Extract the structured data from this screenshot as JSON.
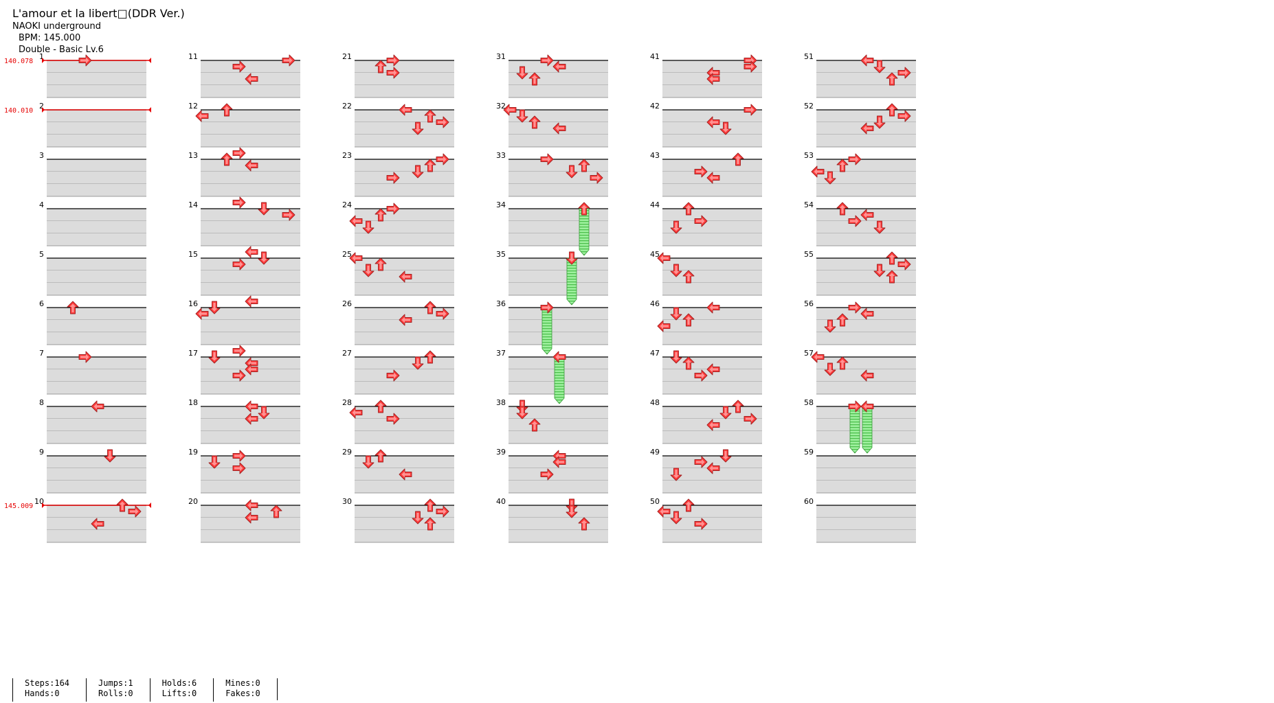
{
  "song": {
    "title": "L'amour et la libert□(DDR Ver.)",
    "artist": "NAOKI underground",
    "bpm_label": "BPM: 145.000",
    "difficulty_label": "Double - Basic  Lv.6"
  },
  "bpm_markers": [
    {
      "measure": 1,
      "label": "140.078"
    },
    {
      "measure": 2,
      "label": "140.010"
    },
    {
      "measure": 10,
      "label": "145.009"
    }
  ],
  "colors": {
    "arrow": "#ff3b3b",
    "hold": "#7ee27e",
    "bpm_line": "#e60000",
    "band": "#dcdcdc"
  },
  "stats": {
    "steps": "Steps:164",
    "hands": "Hands:0",
    "jumps": "Jumps:1",
    "rolls": "Rolls:0",
    "holds": "Holds:6",
    "lifts": "Lifts:0",
    "mines": "Mines:0",
    "fakes": "Fakes:0"
  },
  "measures_per_column": 10,
  "total_measures": 60,
  "lanes": [
    "left",
    "down",
    "up",
    "right",
    "left",
    "down",
    "up",
    "right"
  ],
  "notes": [
    {
      "m": 1,
      "b": 0,
      "l": 3
    },
    {
      "m": 6,
      "b": 0,
      "l": 2
    },
    {
      "m": 7,
      "b": 0,
      "l": 3
    },
    {
      "m": 8,
      "b": 0,
      "l": 4
    },
    {
      "m": 9,
      "b": 0,
      "l": 5
    },
    {
      "m": 10,
      "b": 0,
      "l": 6
    },
    {
      "m": 10,
      "b": 0.5,
      "l": 7
    },
    {
      "m": 10,
      "b": 1.5,
      "l": 4
    },
    {
      "m": 11,
      "b": 0,
      "l": 7
    },
    {
      "m": 11,
      "b": 0.5,
      "l": 3
    },
    {
      "m": 11,
      "b": 1.5,
      "l": 4
    },
    {
      "m": 12,
      "b": 0,
      "l": 2
    },
    {
      "m": 12,
      "b": 0.5,
      "l": 0
    },
    {
      "m": 13,
      "b": -0.5,
      "l": 3
    },
    {
      "m": 13,
      "b": 0,
      "l": 2
    },
    {
      "m": 13,
      "b": 0.5,
      "l": 4
    },
    {
      "m": 14,
      "b": -0.5,
      "l": 3
    },
    {
      "m": 14,
      "b": 0,
      "l": 5
    },
    {
      "m": 14,
      "b": 0.5,
      "l": 7
    },
    {
      "m": 15,
      "b": -0.5,
      "l": 4
    },
    {
      "m": 15,
      "b": 0,
      "l": 5
    },
    {
      "m": 15,
      "b": 0.5,
      "l": 3
    },
    {
      "m": 16,
      "b": -0.5,
      "l": 4
    },
    {
      "m": 16,
      "b": 0,
      "l": 1
    },
    {
      "m": 16,
      "b": 0.5,
      "l": 0
    },
    {
      "m": 17,
      "b": -0.5,
      "l": 3
    },
    {
      "m": 17,
      "b": 0,
      "l": 1
    },
    {
      "m": 17,
      "b": 0.5,
      "l": 4
    },
    {
      "m": 17,
      "b": 1,
      "l": 4
    },
    {
      "m": 17,
      "b": 1.5,
      "l": 3
    },
    {
      "m": 18,
      "b": 0,
      "l": 4
    },
    {
      "m": 18,
      "b": 0.5,
      "l": 5
    },
    {
      "m": 18,
      "b": 1,
      "l": 4
    },
    {
      "m": 19,
      "b": 0,
      "l": 3
    },
    {
      "m": 19,
      "b": 0.5,
      "l": 1
    },
    {
      "m": 19,
      "b": 1,
      "l": 3
    },
    {
      "m": 20,
      "b": 0,
      "l": 4
    },
    {
      "m": 20,
      "b": 0.5,
      "l": 6
    },
    {
      "m": 20,
      "b": 1,
      "l": 4
    },
    {
      "m": 21,
      "b": 0,
      "l": 3
    },
    {
      "m": 21,
      "b": 0.5,
      "l": 2
    },
    {
      "m": 21,
      "b": 1,
      "l": 3
    },
    {
      "m": 22,
      "b": 0,
      "l": 4
    },
    {
      "m": 22,
      "b": 0.5,
      "l": 6
    },
    {
      "m": 22,
      "b": 1,
      "l": 7
    },
    {
      "m": 22,
      "b": 1.5,
      "l": 5
    },
    {
      "m": 23,
      "b": 0,
      "l": 7
    },
    {
      "m": 23,
      "b": 0.5,
      "l": 6
    },
    {
      "m": 23,
      "b": 1,
      "l": 5
    },
    {
      "m": 23,
      "b": 1.5,
      "l": 3
    },
    {
      "m": 24,
      "b": 0,
      "l": 3
    },
    {
      "m": 24,
      "b": 0.5,
      "l": 2
    },
    {
      "m": 24,
      "b": 1,
      "l": 0
    },
    {
      "m": 24,
      "b": 1.5,
      "l": 1
    },
    {
      "m": 25,
      "b": 0,
      "l": 0
    },
    {
      "m": 25,
      "b": 0.5,
      "l": 2
    },
    {
      "m": 25,
      "b": 1,
      "l": 1
    },
    {
      "m": 25,
      "b": 1.5,
      "l": 4
    },
    {
      "m": 26,
      "b": 0,
      "l": 6
    },
    {
      "m": 26,
      "b": 0.5,
      "l": 7
    },
    {
      "m": 26,
      "b": 1,
      "l": 4
    },
    {
      "m": 27,
      "b": 0,
      "l": 6
    },
    {
      "m": 27,
      "b": 0.5,
      "l": 5
    },
    {
      "m": 27,
      "b": 1.5,
      "l": 3
    },
    {
      "m": 28,
      "b": 0,
      "l": 2
    },
    {
      "m": 28,
      "b": 0.5,
      "l": 0
    },
    {
      "m": 28,
      "b": 1,
      "l": 3
    },
    {
      "m": 29,
      "b": 0,
      "l": 2
    },
    {
      "m": 29,
      "b": 0.5,
      "l": 1
    },
    {
      "m": 29,
      "b": 1.5,
      "l": 4
    },
    {
      "m": 30,
      "b": 0,
      "l": 6
    },
    {
      "m": 30,
      "b": 0.5,
      "l": 7
    },
    {
      "m": 30,
      "b": 1,
      "l": 5
    },
    {
      "m": 30,
      "b": 1.5,
      "l": 6
    },
    {
      "m": 31,
      "b": 0,
      "l": 3
    },
    {
      "m": 31,
      "b": 0.5,
      "l": 4
    },
    {
      "m": 31,
      "b": 1,
      "l": 1
    },
    {
      "m": 31,
      "b": 1.5,
      "l": 2
    },
    {
      "m": 32,
      "b": 0,
      "l": 0
    },
    {
      "m": 32,
      "b": 0.5,
      "l": 1
    },
    {
      "m": 32,
      "b": 1,
      "l": 2
    },
    {
      "m": 32,
      "b": 1.5,
      "l": 4
    },
    {
      "m": 33,
      "b": 0,
      "l": 3
    },
    {
      "m": 33,
      "b": 0.5,
      "l": 6
    },
    {
      "m": 33,
      "b": 1,
      "l": 5
    },
    {
      "m": 33,
      "b": 1.5,
      "l": 7
    },
    {
      "m": 34,
      "b": 0,
      "l": 6,
      "h": 1
    },
    {
      "m": 35,
      "b": 0,
      "l": 5,
      "h": 1
    },
    {
      "m": 36,
      "b": 0,
      "l": 3,
      "h": 1
    },
    {
      "m": 37,
      "b": 0,
      "l": 4,
      "h": 1
    },
    {
      "m": 38,
      "b": 0,
      "l": 1
    },
    {
      "m": 38,
      "b": 0.5,
      "l": 1
    },
    {
      "m": 38,
      "b": 1.5,
      "l": 2
    },
    {
      "m": 39,
      "b": 0,
      "l": 4
    },
    {
      "m": 39,
      "b": 0.5,
      "l": 4
    },
    {
      "m": 39,
      "b": 1.5,
      "l": 3
    },
    {
      "m": 40,
      "b": 0,
      "l": 5
    },
    {
      "m": 40,
      "b": 0.5,
      "l": 5
    },
    {
      "m": 40,
      "b": 1.5,
      "l": 6
    },
    {
      "m": 41,
      "b": 0,
      "l": 7
    },
    {
      "m": 41,
      "b": 0.5,
      "l": 7
    },
    {
      "m": 41,
      "b": 1,
      "l": 4
    },
    {
      "m": 41,
      "b": 1.5,
      "l": 4
    },
    {
      "m": 42,
      "b": 0,
      "l": 7
    },
    {
      "m": 42,
      "b": 1,
      "l": 4
    },
    {
      "m": 42,
      "b": 1.5,
      "l": 5
    },
    {
      "m": 43,
      "b": 0,
      "l": 6
    },
    {
      "m": 43,
      "b": 1,
      "l": 3
    },
    {
      "m": 43,
      "b": 1.5,
      "l": 4
    },
    {
      "m": 44,
      "b": 0,
      "l": 2
    },
    {
      "m": 44,
      "b": 1,
      "l": 3
    },
    {
      "m": 44,
      "b": 1.5,
      "l": 1
    },
    {
      "m": 45,
      "b": 0,
      "l": 0
    },
    {
      "m": 45,
      "b": 1,
      "l": 1
    },
    {
      "m": 45,
      "b": 1.5,
      "l": 2
    },
    {
      "m": 46,
      "b": 0,
      "l": 4
    },
    {
      "m": 46,
      "b": 0.5,
      "l": 1
    },
    {
      "m": 46,
      "b": 1,
      "l": 2
    },
    {
      "m": 46,
      "b": 1.5,
      "l": 0
    },
    {
      "m": 47,
      "b": 0,
      "l": 1
    },
    {
      "m": 47,
      "b": 0.5,
      "l": 2
    },
    {
      "m": 47,
      "b": 1,
      "l": 4
    },
    {
      "m": 47,
      "b": 1.5,
      "l": 3
    },
    {
      "m": 48,
      "b": 0,
      "l": 6
    },
    {
      "m": 48,
      "b": 0.5,
      "l": 5
    },
    {
      "m": 48,
      "b": 1,
      "l": 7
    },
    {
      "m": 48,
      "b": 1.5,
      "l": 4
    },
    {
      "m": 49,
      "b": 0,
      "l": 5
    },
    {
      "m": 49,
      "b": 0.5,
      "l": 3
    },
    {
      "m": 49,
      "b": 1,
      "l": 4
    },
    {
      "m": 49,
      "b": 1.5,
      "l": 1
    },
    {
      "m": 50,
      "b": 0,
      "l": 2
    },
    {
      "m": 50,
      "b": 0.5,
      "l": 0
    },
    {
      "m": 50,
      "b": 1,
      "l": 1
    },
    {
      "m": 50,
      "b": 1.5,
      "l": 3
    },
    {
      "m": 51,
      "b": 0,
      "l": 4
    },
    {
      "m": 51,
      "b": 0.5,
      "l": 5
    },
    {
      "m": 51,
      "b": 1,
      "l": 7
    },
    {
      "m": 51,
      "b": 1.5,
      "l": 6
    },
    {
      "m": 52,
      "b": 0,
      "l": 6
    },
    {
      "m": 52,
      "b": 0.5,
      "l": 7
    },
    {
      "m": 52,
      "b": 1,
      "l": 5
    },
    {
      "m": 52,
      "b": 1.5,
      "l": 4
    },
    {
      "m": 53,
      "b": 0,
      "l": 3
    },
    {
      "m": 53,
      "b": 0.5,
      "l": 2
    },
    {
      "m": 53,
      "b": 1,
      "l": 0
    },
    {
      "m": 53,
      "b": 1.5,
      "l": 1
    },
    {
      "m": 54,
      "b": 0,
      "l": 2
    },
    {
      "m": 54,
      "b": 0.5,
      "l": 4
    },
    {
      "m": 54,
      "b": 1,
      "l": 3
    },
    {
      "m": 54,
      "b": 1.5,
      "l": 5
    },
    {
      "m": 55,
      "b": 0,
      "l": 6
    },
    {
      "m": 55,
      "b": 0.5,
      "l": 7
    },
    {
      "m": 55,
      "b": 1,
      "l": 5
    },
    {
      "m": 55,
      "b": 1.5,
      "l": 6
    },
    {
      "m": 56,
      "b": 0,
      "l": 3
    },
    {
      "m": 56,
      "b": 0.5,
      "l": 4
    },
    {
      "m": 56,
      "b": 1,
      "l": 2
    },
    {
      "m": 56,
      "b": 1.5,
      "l": 1
    },
    {
      "m": 57,
      "b": 0,
      "l": 0
    },
    {
      "m": 57,
      "b": 0.5,
      "l": 2
    },
    {
      "m": 57,
      "b": 1,
      "l": 1
    },
    {
      "m": 57,
      "b": 1.5,
      "l": 4
    },
    {
      "m": 58,
      "b": 0,
      "l": 3,
      "h": 1
    },
    {
      "m": 58,
      "b": 0,
      "l": 4,
      "h": 1
    }
  ]
}
